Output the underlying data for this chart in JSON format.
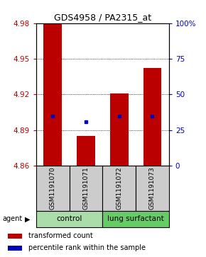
{
  "title": "GDS4958 / PA2315_at",
  "categories": [
    "GSM1191070",
    "GSM1191071",
    "GSM1191072",
    "GSM1191073"
  ],
  "bar_tops": [
    4.98,
    4.885,
    4.921,
    4.942
  ],
  "blue_markers": [
    4.902,
    4.897,
    4.902,
    4.902
  ],
  "baseline": 4.86,
  "ylim": [
    4.86,
    4.98
  ],
  "yticks_left": [
    4.86,
    4.89,
    4.92,
    4.95,
    4.98
  ],
  "yticks_right_vals": [
    0,
    25,
    50,
    75,
    100
  ],
  "yticks_right_pos": [
    4.86,
    4.89,
    4.92,
    4.95,
    4.98
  ],
  "bar_color": "#bb0000",
  "marker_color": "#0000bb",
  "bar_width": 0.55,
  "group_info": [
    {
      "label": "control",
      "xmin": 0,
      "xmax": 1,
      "color": "#aaddaa"
    },
    {
      "label": "lung surfactant",
      "xmin": 2,
      "xmax": 3,
      "color": "#66cc66"
    }
  ],
  "agent_label": "agent",
  "legend_red": "transformed count",
  "legend_blue": "percentile rank within the sample",
  "sample_box_color": "#cccccc",
  "title_fontsize": 9,
  "tick_fontsize": 7.5,
  "bar_label_fontsize": 6.5,
  "group_label_fontsize": 7.5,
  "legend_fontsize": 7
}
